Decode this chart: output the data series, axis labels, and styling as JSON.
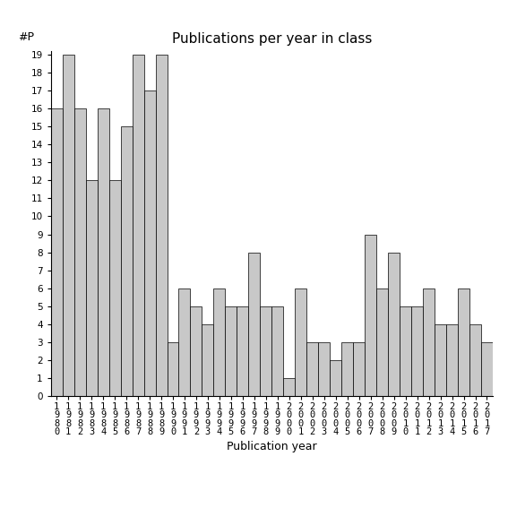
{
  "title": "Publications per year in class",
  "xlabel": "Publication year",
  "ylabel": "#P",
  "years": [
    1980,
    1981,
    1982,
    1983,
    1984,
    1985,
    1986,
    1987,
    1988,
    1989,
    1990,
    1991,
    1992,
    1993,
    1994,
    1995,
    1996,
    1997,
    1998,
    1999,
    2000,
    2001,
    2002,
    2003,
    2004,
    2005,
    2006,
    2007,
    2008,
    2009,
    2010,
    2011,
    2012,
    2013,
    2014,
    2015,
    2016,
    2017
  ],
  "values": [
    16,
    19,
    16,
    12,
    16,
    12,
    15,
    19,
    17,
    19,
    3,
    6,
    5,
    4,
    6,
    5,
    5,
    8,
    5,
    5,
    1,
    6,
    3,
    3,
    2,
    3,
    3,
    9,
    6,
    8,
    5,
    5,
    6,
    4,
    4,
    6,
    4,
    3
  ],
  "bar_color": "#c8c8c8",
  "bar_edge_color": "#000000",
  "ytick_max": 19,
  "background_color": "#ffffff",
  "title_fontsize": 11,
  "label_fontsize": 9,
  "tick_fontsize": 7.5
}
